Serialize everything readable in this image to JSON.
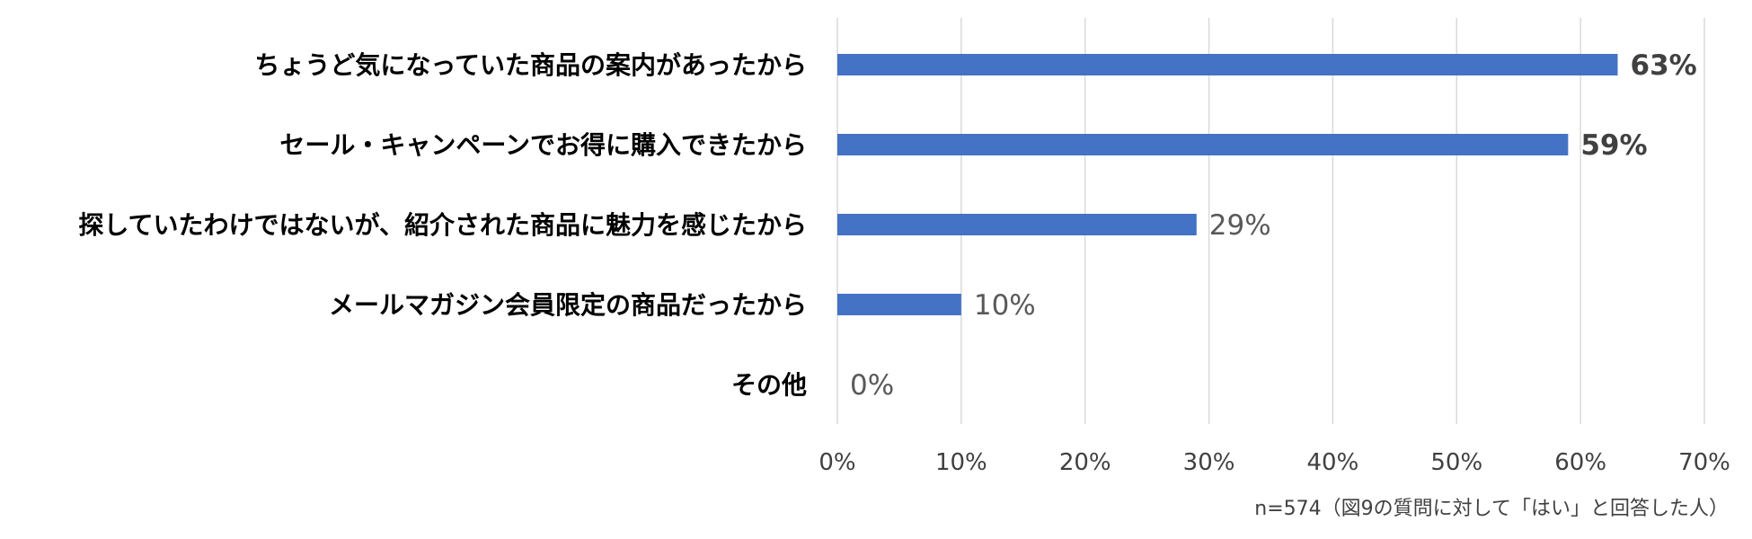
{
  "chart_data": {
    "type": "bar",
    "orientation": "horizontal",
    "categories": [
      "ちょうど気になっていた商品の案内があったから",
      "セール・キャンペーンでお得に購入できたから",
      "探していたわけではないが、紹介された商品に魅力を感じたから",
      "メールマガジン会員限定の商品だったから",
      "その他"
    ],
    "values": [
      63,
      59,
      29,
      10,
      0
    ],
    "value_labels": [
      "63%",
      "59%",
      "29%",
      "10%",
      "0%"
    ],
    "highlighted": [
      true,
      true,
      false,
      false,
      false
    ],
    "x_ticks": [
      "0%",
      "10%",
      "20%",
      "30%",
      "40%",
      "50%",
      "60%",
      "70%"
    ],
    "xlim": [
      0,
      70
    ],
    "grid": "vertical",
    "bar_color": "#4472c4",
    "title": "",
    "xlabel": "",
    "ylabel": ""
  },
  "note": "n=574（図9の質問に対して「はい」と回答した人）"
}
